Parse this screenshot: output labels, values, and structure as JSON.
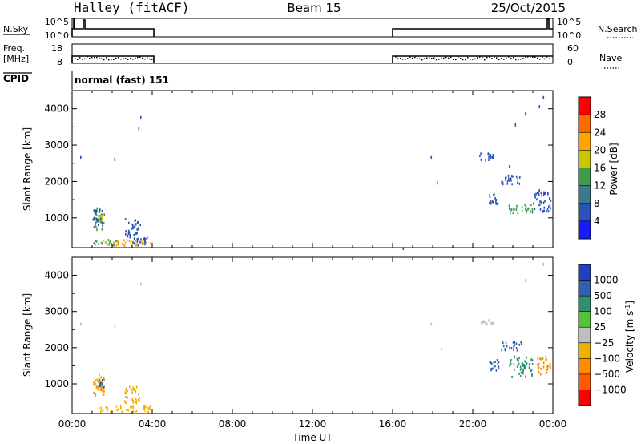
{
  "header": {
    "title": "Halley (fitACF)",
    "beam": "Beam 15",
    "date": "25/Oct/2015"
  },
  "top_panels": {
    "nsky": {
      "label": "N.Sky",
      "ticks": [
        "10^5",
        "10^0"
      ]
    },
    "nsearch": {
      "label": "N.Search",
      "ticks": [
        "10^5",
        "10^0"
      ]
    },
    "freq": {
      "label_line1": "Freq.",
      "label_line2": "[MHz]",
      "ticks": [
        "18",
        "8"
      ]
    },
    "nave": {
      "label": "Nave",
      "ticks": [
        "60",
        "0"
      ]
    },
    "cpid": {
      "label": "CPID",
      "value": "normal (fast) 151"
    }
  },
  "colorbars": {
    "power": {
      "label": "Power [dB]",
      "ticks": [
        "28",
        "24",
        "20",
        "16",
        "12",
        "8",
        "4"
      ],
      "colors": [
        "#1a1aff",
        "#2a52b8",
        "#3b7a8a",
        "#3f9a4a",
        "#c8c800",
        "#ffa500",
        "#ff6a00",
        "#ff0000"
      ]
    },
    "velocity": {
      "label": "Velocity [m s",
      "label_sup": "-1",
      "label_end": "]",
      "ticks": [
        "1000",
        "500",
        "100",
        "25",
        "-25",
        "-100",
        "-500",
        "-1000"
      ],
      "colors": [
        "#2040c0",
        "#3060b0",
        "#2f8f70",
        "#55c23a",
        "#bebebe",
        "#f0b000",
        "#ff8c00",
        "#ff5a00",
        "#ff0000"
      ]
    }
  },
  "chart_data": [
    {
      "type": "scatter",
      "panel": "power",
      "title": "",
      "xlabel": "",
      "ylabel": "Slant Range [km]",
      "xlim": [
        0,
        24
      ],
      "ylim": [
        180,
        4500
      ],
      "x_ticks": [
        0,
        4,
        8,
        12,
        16,
        20,
        24
      ],
      "y_ticks": [
        1000,
        2000,
        3000,
        4000
      ],
      "clusters": [
        {
          "t0": 0.9,
          "t1": 2.3,
          "r0": 250,
          "r1": 420,
          "color": "#3f9a4a"
        },
        {
          "t0": 1.6,
          "t1": 3.9,
          "r0": 250,
          "r1": 420,
          "color": "#ffa500"
        },
        {
          "t0": 3.0,
          "t1": 3.9,
          "r0": 280,
          "r1": 480,
          "color": "#2a52b8"
        },
        {
          "t0": 1.0,
          "t1": 1.6,
          "r0": 700,
          "r1": 1300,
          "color": "#3f9a4a"
        },
        {
          "t0": 1.0,
          "t1": 1.5,
          "r0": 800,
          "r1": 1250,
          "color": "#2a52b8"
        },
        {
          "t0": 1.3,
          "t1": 1.5,
          "r0": 900,
          "r1": 1100,
          "color": "#c8c800"
        },
        {
          "t0": 2.6,
          "t1": 3.4,
          "r0": 500,
          "r1": 1000,
          "color": "#2a52b8"
        },
        {
          "t0": 20.3,
          "t1": 21.0,
          "r0": 2600,
          "r1": 2800,
          "color": "#2a52b8"
        },
        {
          "t0": 20.8,
          "t1": 21.3,
          "r0": 1400,
          "r1": 1700,
          "color": "#2a52b8"
        },
        {
          "t0": 21.4,
          "t1": 22.4,
          "r0": 1950,
          "r1": 2200,
          "color": "#2a52b8"
        },
        {
          "t0": 21.6,
          "t1": 23.0,
          "r0": 1150,
          "r1": 1400,
          "color": "#3f9a4a"
        },
        {
          "t0": 23.0,
          "t1": 23.9,
          "r0": 1200,
          "r1": 1800,
          "color": "#2a52b8"
        }
      ],
      "isolated_points": [
        {
          "t": 0.4,
          "r": 2700
        },
        {
          "t": 2.1,
          "r": 2650
        },
        {
          "t": 3.4,
          "r": 3800
        },
        {
          "t": 3.3,
          "r": 3500
        },
        {
          "t": 16.5,
          "r": 200
        },
        {
          "t": 17.9,
          "r": 2700
        },
        {
          "t": 18.2,
          "r": 2000
        },
        {
          "t": 22.6,
          "r": 3900
        },
        {
          "t": 23.3,
          "r": 4100
        },
        {
          "t": 23.5,
          "r": 4350
        },
        {
          "t": 22.1,
          "r": 3600
        },
        {
          "t": 21.8,
          "r": 2450
        }
      ]
    },
    {
      "type": "scatter",
      "panel": "velocity",
      "title": "",
      "xlabel": "Time UT",
      "ylabel": "Slant Range [km]",
      "xlim": [
        0,
        24
      ],
      "ylim": [
        180,
        4500
      ],
      "x_ticks": [
        0,
        4,
        8,
        12,
        16,
        20,
        24
      ],
      "x_tick_labels": [
        "00:00",
        "04:00",
        "08:00",
        "12:00",
        "16:00",
        "20:00",
        "00:00"
      ],
      "y_ticks": [
        1000,
        2000,
        3000,
        4000
      ],
      "clusters": [
        {
          "t0": 0.9,
          "t1": 3.9,
          "r0": 230,
          "r1": 430,
          "color": "#f0b000"
        },
        {
          "t0": 1.0,
          "t1": 1.6,
          "r0": 700,
          "r1": 1300,
          "color": "#ff8c00"
        },
        {
          "t0": 1.1,
          "t1": 1.5,
          "r0": 850,
          "r1": 1200,
          "color": "#f0b000"
        },
        {
          "t0": 1.3,
          "t1": 1.6,
          "r0": 900,
          "r1": 1150,
          "color": "#3060b0"
        },
        {
          "t0": 2.6,
          "t1": 3.4,
          "r0": 500,
          "r1": 1000,
          "color": "#f0b000"
        },
        {
          "t0": 20.3,
          "t1": 21.0,
          "r0": 2650,
          "r1": 2800,
          "color": "#bebebe"
        },
        {
          "t0": 20.8,
          "t1": 21.3,
          "r0": 1400,
          "r1": 1700,
          "color": "#3060b0"
        },
        {
          "t0": 21.4,
          "t1": 22.4,
          "r0": 1950,
          "r1": 2200,
          "color": "#3060b0"
        },
        {
          "t0": 21.8,
          "t1": 23.0,
          "r0": 1200,
          "r1": 1800,
          "color": "#2f8f70"
        },
        {
          "t0": 23.2,
          "t1": 23.9,
          "r0": 1300,
          "r1": 1800,
          "color": "#ff8c00"
        }
      ],
      "isolated_points": [
        {
          "t": 0.4,
          "r": 2700
        },
        {
          "t": 3.4,
          "r": 3800
        },
        {
          "t": 2.1,
          "r": 2650
        },
        {
          "t": 22.6,
          "r": 3900
        },
        {
          "t": 23.5,
          "r": 4350
        },
        {
          "t": 17.9,
          "r": 2700
        },
        {
          "t": 18.4,
          "r": 2000
        }
      ]
    }
  ]
}
